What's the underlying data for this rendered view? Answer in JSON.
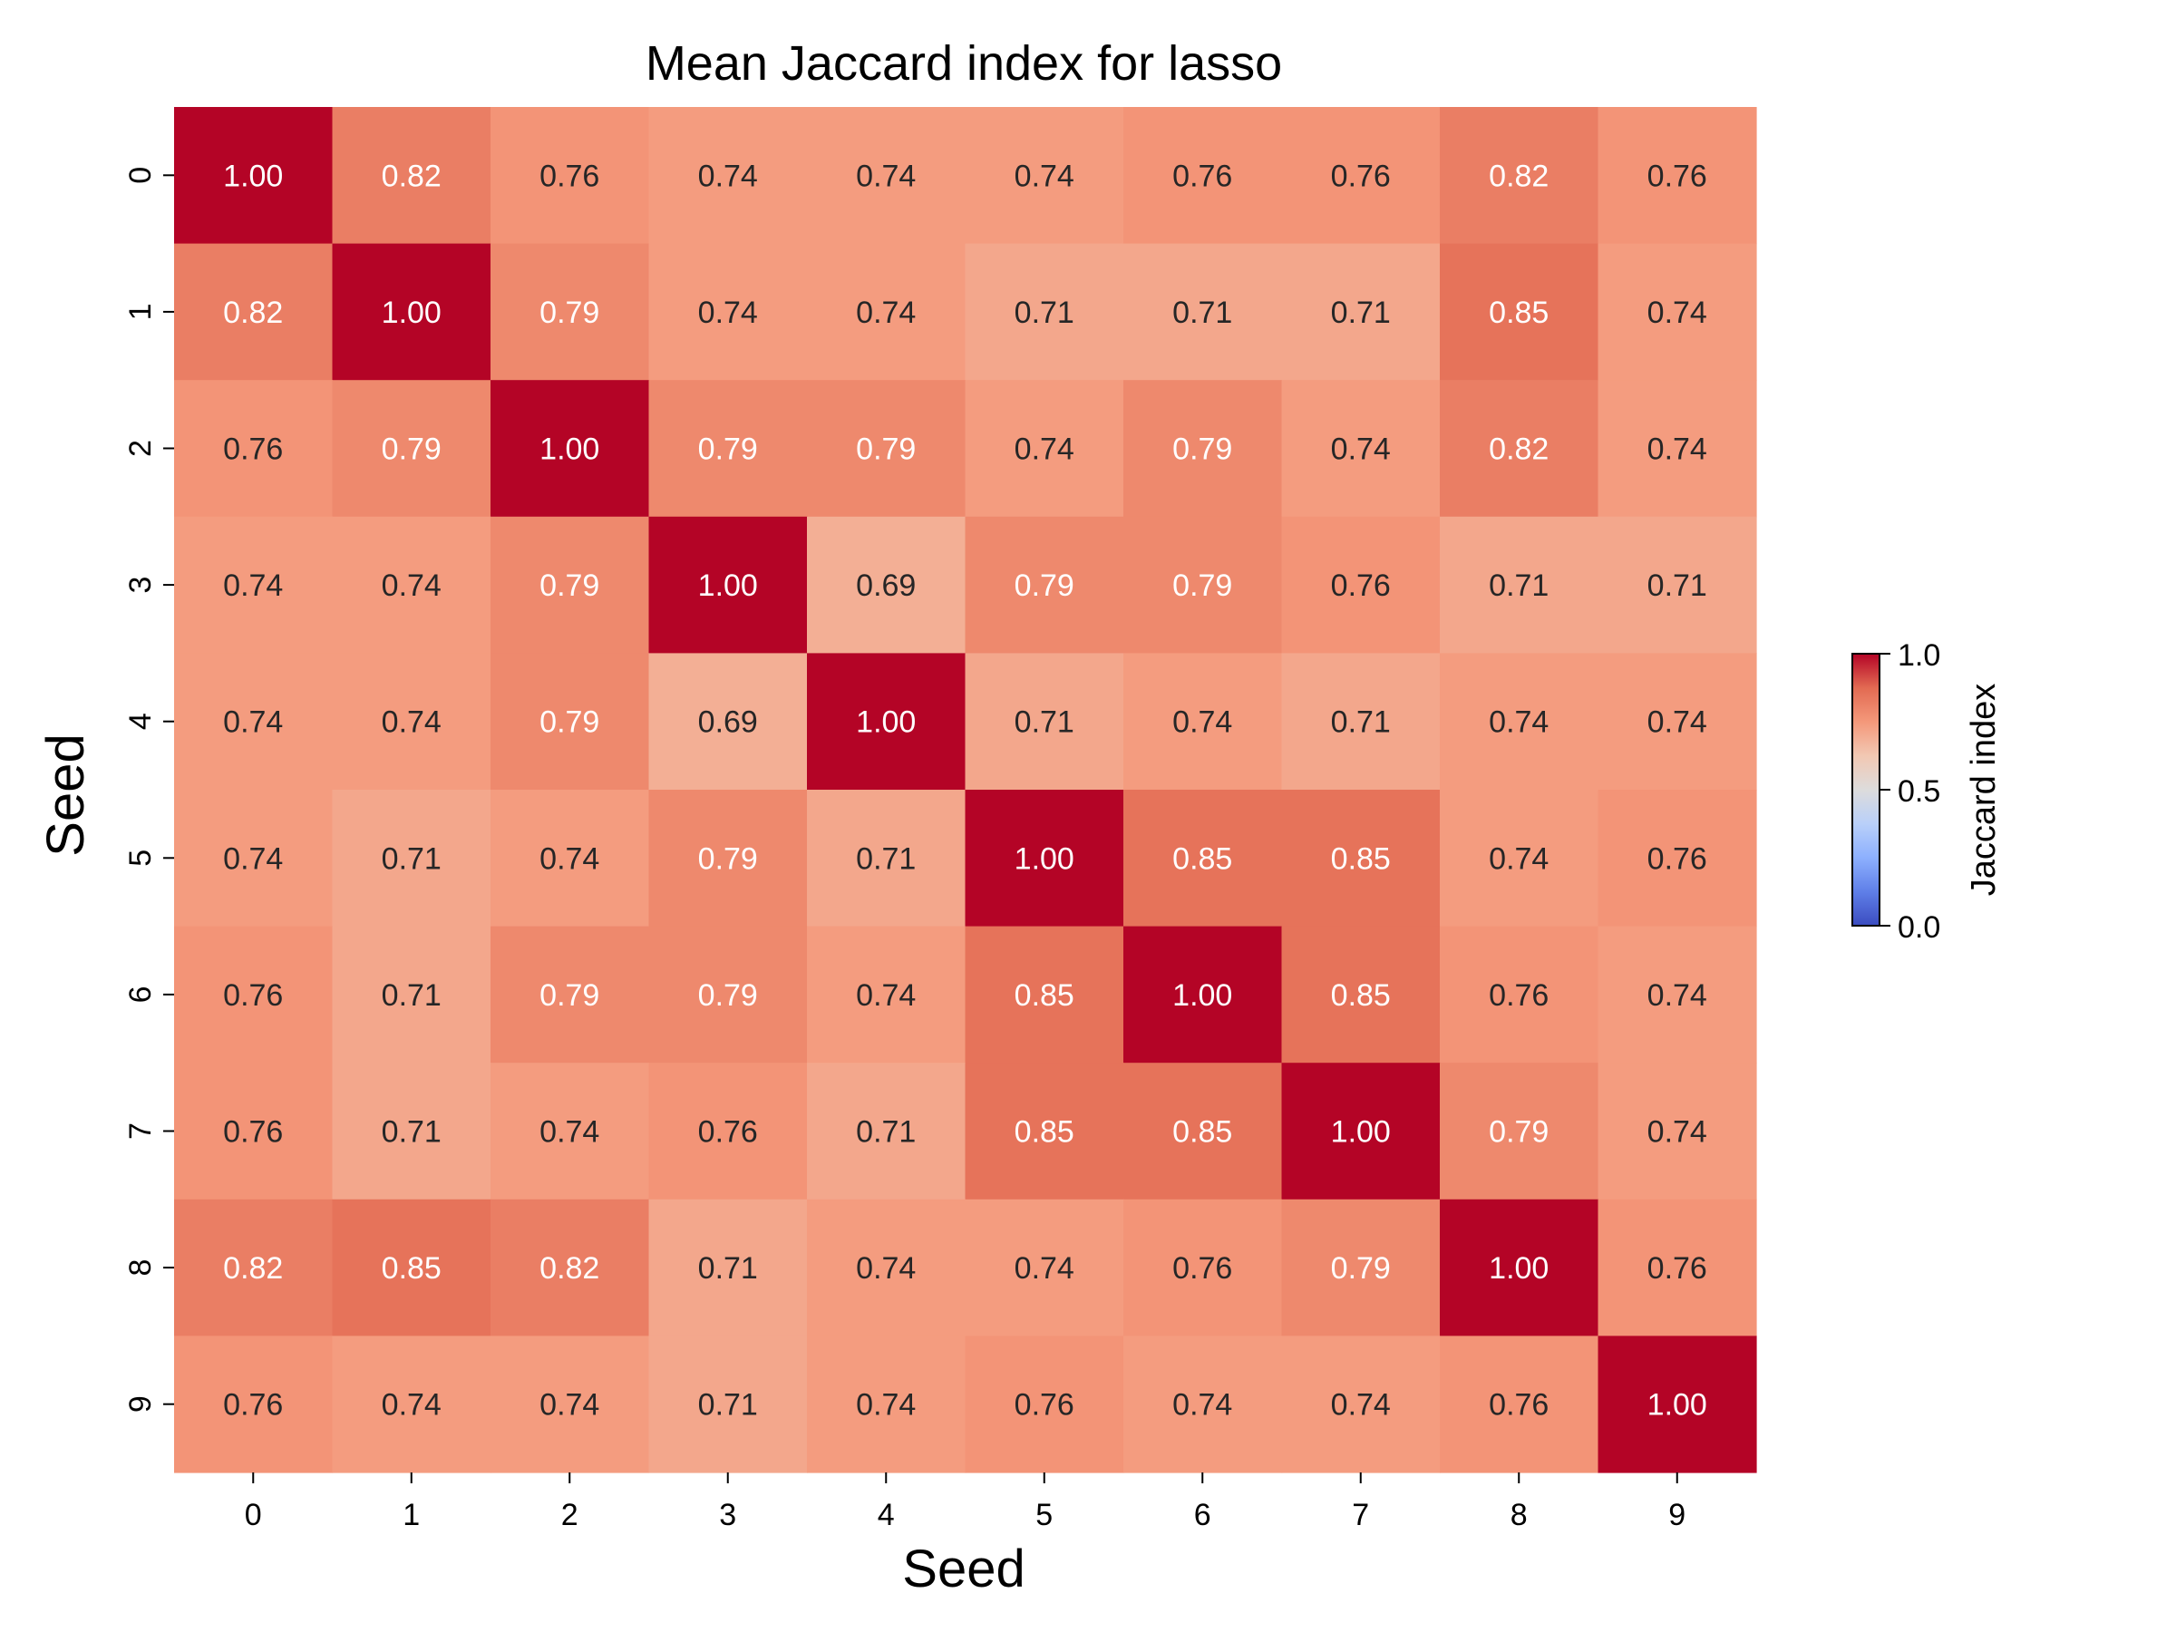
{
  "chart_data": {
    "type": "heatmap",
    "title": "Mean Jaccard index for lasso",
    "xlabel": "Seed",
    "ylabel": "Seed",
    "x_categories": [
      "0",
      "1",
      "2",
      "3",
      "4",
      "5",
      "6",
      "7",
      "8",
      "9"
    ],
    "y_categories": [
      "0",
      "1",
      "2",
      "3",
      "4",
      "5",
      "6",
      "7",
      "8",
      "9"
    ],
    "values": [
      [
        1.0,
        0.82,
        0.76,
        0.74,
        0.74,
        0.74,
        0.76,
        0.76,
        0.82,
        0.76
      ],
      [
        0.82,
        1.0,
        0.79,
        0.74,
        0.74,
        0.71,
        0.71,
        0.71,
        0.85,
        0.74
      ],
      [
        0.76,
        0.79,
        1.0,
        0.79,
        0.79,
        0.74,
        0.79,
        0.74,
        0.82,
        0.74
      ],
      [
        0.74,
        0.74,
        0.79,
        1.0,
        0.69,
        0.79,
        0.79,
        0.76,
        0.71,
        0.71
      ],
      [
        0.74,
        0.74,
        0.79,
        0.69,
        1.0,
        0.71,
        0.74,
        0.71,
        0.74,
        0.74
      ],
      [
        0.74,
        0.71,
        0.74,
        0.79,
        0.71,
        1.0,
        0.85,
        0.85,
        0.74,
        0.76
      ],
      [
        0.76,
        0.71,
        0.79,
        0.79,
        0.74,
        0.85,
        1.0,
        0.85,
        0.76,
        0.74
      ],
      [
        0.76,
        0.71,
        0.74,
        0.76,
        0.71,
        0.85,
        0.85,
        1.0,
        0.79,
        0.74
      ],
      [
        0.82,
        0.85,
        0.82,
        0.71,
        0.74,
        0.74,
        0.76,
        0.79,
        1.0,
        0.76
      ],
      [
        0.76,
        0.74,
        0.74,
        0.71,
        0.74,
        0.76,
        0.74,
        0.74,
        0.76,
        1.0
      ]
    ],
    "value_format": "0.00",
    "colormap": "coolwarm",
    "vmin": 0.0,
    "vmax": 1.0,
    "colorbar": {
      "label": "Jaccard index",
      "ticks": [
        0.0,
        0.5,
        1.0
      ],
      "tick_labels": [
        "0.0",
        "0.5",
        "1.0"
      ]
    },
    "annotated": true
  }
}
